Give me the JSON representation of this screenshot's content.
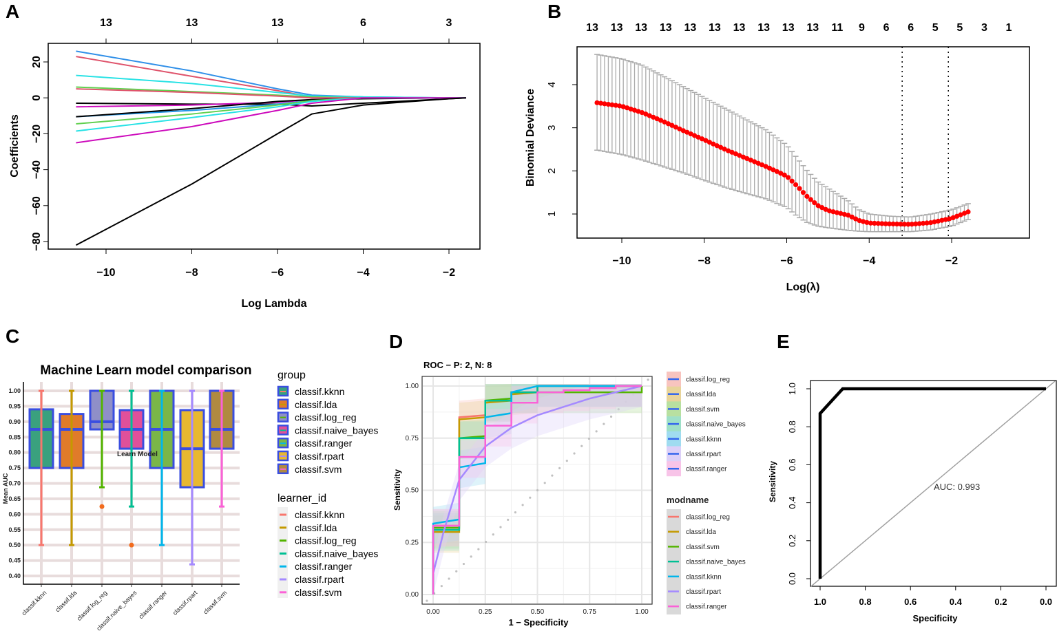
{
  "chart_data": [
    {
      "panel": "A",
      "type": "line",
      "xlabel": "Log Lambda",
      "ylabel": "Coefficients",
      "xlim": [
        -10.8,
        -1.5
      ],
      "ylim": [
        -85,
        30
      ],
      "x_ticks": [
        -10,
        -8,
        -6,
        -4,
        -2
      ],
      "x_tick_labels": [
        "−10",
        "−8",
        "−6",
        "−4",
        "−2"
      ],
      "y_ticks": [
        20,
        0,
        -20,
        -40,
        -60,
        -80
      ],
      "y_tick_labels": [
        "20",
        "0",
        "−20",
        "−40",
        "−60",
        "−80"
      ],
      "top_ticks": [
        -10,
        -8,
        -6,
        -4,
        -2
      ],
      "top_labels": [
        "13",
        "13",
        "13",
        "6",
        "3"
      ],
      "x": [
        -10.7,
        -8,
        -6,
        -5.2,
        -4,
        -2,
        -1.6
      ],
      "series": [
        {
          "color": "#2f8fe8",
          "values": [
            26,
            15,
            5,
            1.5,
            0.5,
            0,
            0
          ]
        },
        {
          "color": "#df536b",
          "values": [
            23,
            12,
            4,
            0.5,
            0,
            0,
            0
          ]
        },
        {
          "color": "#28e2e5",
          "values": [
            12.5,
            8,
            3,
            1,
            0.5,
            0,
            0
          ]
        },
        {
          "color": "#61d04f",
          "values": [
            6,
            3.5,
            1.5,
            0.5,
            0,
            0,
            0
          ]
        },
        {
          "color": "#df536b",
          "values": [
            5,
            3,
            1,
            0,
            0,
            0,
            0
          ]
        },
        {
          "color": "#000000",
          "values": [
            -3,
            -3.5,
            -3.5,
            -4.5,
            -3,
            -0.5,
            0
          ]
        },
        {
          "color": "#cd0bbc",
          "values": [
            -5,
            -4,
            -2.5,
            -1,
            0,
            0,
            0
          ]
        },
        {
          "color": "#2297e6",
          "values": [
            -10.5,
            -7,
            -3.5,
            -1.5,
            0,
            0,
            0
          ]
        },
        {
          "color": "#000000",
          "values": [
            -10.5,
            -6,
            -2,
            -1,
            -0.5,
            0,
            0
          ]
        },
        {
          "color": "#61d04f",
          "values": [
            -14.5,
            -9,
            -4,
            -1.5,
            0,
            0,
            0
          ]
        },
        {
          "color": "#28e2e5",
          "values": [
            -18.5,
            -11,
            -5,
            -2,
            0,
            0,
            0
          ]
        },
        {
          "color": "#cd0bbc",
          "values": [
            -25,
            -16,
            -7,
            -3,
            0,
            0,
            0
          ]
        },
        {
          "color": "#000000",
          "values": [
            -82,
            -48,
            -20,
            -9,
            -4,
            -0.5,
            0
          ]
        }
      ]
    },
    {
      "panel": "B",
      "type": "scatter",
      "xlabel": "Log(λ)",
      "ylabel": "Binomial Deviance",
      "xlim": [
        -10.75,
        -1.45
      ],
      "ylim": [
        0.45,
        4.9
      ],
      "x_ticks": [
        -10,
        -8,
        -6,
        -4,
        -2
      ],
      "x_tick_labels": [
        "−10",
        "−8",
        "−6",
        "−4",
        "−2"
      ],
      "y_ticks": [
        1,
        2,
        3,
        4
      ],
      "y_tick_labels": [
        "1",
        "2",
        "3",
        "4"
      ],
      "top_labels": [
        "13",
        "13",
        "13",
        "13",
        "13",
        "13",
        "13",
        "13",
        "13",
        "13",
        "11",
        "9",
        "6",
        "6",
        "5",
        "5",
        "3",
        "1"
      ],
      "x": [
        -10.6,
        -10,
        -9.5,
        -9,
        -8.5,
        -8,
        -7.5,
        -7,
        -6.5,
        -6,
        -5.75,
        -5.5,
        -5.25,
        -5,
        -4.5,
        -4.25,
        -4,
        -3.5,
        -3,
        -2.5,
        -2,
        -1.6
      ],
      "mean": [
        3.58,
        3.5,
        3.35,
        3.15,
        2.93,
        2.72,
        2.5,
        2.3,
        2.1,
        1.88,
        1.65,
        1.4,
        1.2,
        1.08,
        0.97,
        0.85,
        0.79,
        0.77,
        0.76,
        0.8,
        0.9,
        1.05
      ],
      "upper": [
        4.7,
        4.6,
        4.45,
        4.2,
        3.95,
        3.7,
        3.45,
        3.2,
        2.95,
        2.6,
        2.3,
        2.0,
        1.75,
        1.6,
        1.3,
        1.1,
        1.0,
        0.95,
        0.93,
        1.0,
        1.1,
        1.24
      ],
      "lower": [
        2.48,
        2.38,
        2.25,
        2.1,
        1.95,
        1.78,
        1.62,
        1.48,
        1.35,
        1.15,
        0.95,
        0.8,
        0.72,
        0.68,
        0.62,
        0.6,
        0.59,
        0.59,
        0.59,
        0.63,
        0.72,
        0.87
      ],
      "vlines": [
        -3.2,
        -2.08
      ],
      "point_color": "#ff0000",
      "errorbar_color": "#aaaaaa"
    },
    {
      "panel": "C",
      "type": "box",
      "title": "Machine Learn model comparison",
      "ylabel": "Mean AUC",
      "annotation": "Learn Model",
      "ylim": [
        0.38,
        1.02
      ],
      "y_ticks": [
        1.0,
        0.95,
        0.9,
        0.85,
        0.8,
        0.75,
        0.7,
        0.65,
        0.6,
        0.55,
        0.5,
        0.45,
        0.4
      ],
      "y_tick_labels": [
        "1.00",
        "0.95",
        "0.90",
        "0.85",
        "0.80",
        "0.75",
        "0.70",
        "0.65",
        "0.60",
        "0.55",
        "0.50",
        "0.45",
        "0.40"
      ],
      "categories": [
        "classif.kknn",
        "classif.lda",
        "classif.log_reg",
        "classif.naive_bayes",
        "classif.ranger",
        "classif.rpart",
        "classif.svm"
      ],
      "boxes": [
        {
          "q1": 0.75,
          "median": 0.875,
          "q3": 0.94,
          "min": 0.5,
          "max": 1.0,
          "fill": "#3aa17e",
          "line": "#f8766d",
          "outliers": []
        },
        {
          "q1": 0.75,
          "median": 0.875,
          "q3": 0.925,
          "min": 0.5,
          "max": 1.0,
          "fill": "#e07b2a",
          "line": "#c49a00",
          "outliers": []
        },
        {
          "q1": 0.875,
          "median": 0.9,
          "q3": 1.0,
          "min": 0.6875,
          "max": 1.0,
          "fill": "#8f8fc8",
          "line": "#53b400",
          "outliers": [
            0.625
          ]
        },
        {
          "q1": 0.8125,
          "median": 0.875,
          "q3": 0.9375,
          "min": 0.625,
          "max": 1.0,
          "fill": "#e0509a",
          "line": "#00c094",
          "outliers": [
            0.5
          ]
        },
        {
          "q1": 0.75,
          "median": 0.875,
          "q3": 1.0,
          "min": 0.5,
          "max": 1.0,
          "fill": "#7ab648",
          "line": "#00b6eb",
          "outliers": []
        },
        {
          "q1": 0.6875,
          "median": 0.8125,
          "q3": 0.9375,
          "min": 0.4375,
          "max": 1.0,
          "fill": "#e8b830",
          "line": "#a58aff",
          "outliers": []
        },
        {
          "q1": 0.8125,
          "median": 0.875,
          "q3": 1.0,
          "min": 0.625,
          "max": 1.0,
          "fill": "#b08a40",
          "line": "#fb61d7",
          "outliers": []
        }
      ],
      "box_border": "#3a4ee0",
      "outlier_color": "#f26b1d",
      "legend_group_title": "group",
      "legend_learner_title": "learner_id"
    },
    {
      "panel": "D",
      "type": "line",
      "title": "ROC − P: 2, N: 8",
      "xlabel": "1 − Specificity",
      "ylabel": "Sensitivity",
      "xlim": [
        -0.05,
        1.05
      ],
      "ylim": [
        -0.05,
        1.05
      ],
      "x_ticks": [
        0,
        0.25,
        0.5,
        0.75,
        1
      ],
      "x_tick_labels": [
        "0.00",
        "0.25",
        "0.50",
        "0.75",
        "1.00"
      ],
      "y_ticks": [
        0,
        0.25,
        0.5,
        0.75,
        1
      ],
      "y_tick_labels": [
        "0.00",
        "0.25",
        "0.50",
        "0.75",
        "1.00"
      ],
      "legend_fill_labels": [
        "classif.log_reg",
        "classif.lda",
        "classif.svm",
        "classif.naive_bayes",
        "classif.kknn",
        "classif.rpart",
        "classif.ranger"
      ],
      "legend_fill_colors": [
        "#f8c4bf",
        "#e8d49a",
        "#b8e0a0",
        "#9ee0c8",
        "#a0dcf0",
        "#dcd0f8",
        "#f8c4e8"
      ],
      "legend_modname_title": "modname",
      "series": [
        {
          "name": "classif.log_reg",
          "color": "#f8766d",
          "points": [
            [
              0,
              0
            ],
            [
              0,
              0.33
            ],
            [
              0.125,
              0.33
            ],
            [
              0.125,
              0.85
            ],
            [
              0.25,
              0.86
            ],
            [
              0.25,
              0.93
            ],
            [
              0.375,
              0.93
            ],
            [
              0.375,
              0.97
            ],
            [
              0.5,
              0.97
            ],
            [
              0.5,
              1
            ],
            [
              1,
              1
            ]
          ]
        },
        {
          "name": "classif.lda",
          "color": "#c49a00",
          "points": [
            [
              0,
              0
            ],
            [
              0,
              0.3
            ],
            [
              0.125,
              0.3
            ],
            [
              0.125,
              0.84
            ],
            [
              0.25,
              0.85
            ],
            [
              0.25,
              0.92
            ],
            [
              0.375,
              0.93
            ],
            [
              0.375,
              0.96
            ],
            [
              0.5,
              0.97
            ],
            [
              0.5,
              1
            ],
            [
              1,
              1
            ]
          ]
        },
        {
          "name": "classif.svm",
          "color": "#53b400",
          "points": [
            [
              0,
              0
            ],
            [
              0,
              0.32
            ],
            [
              0.125,
              0.32
            ],
            [
              0.125,
              0.75
            ],
            [
              0.25,
              0.76
            ],
            [
              0.25,
              0.93
            ],
            [
              0.375,
              0.94
            ],
            [
              0.375,
              0.97
            ],
            [
              0.5,
              0.97
            ],
            [
              1,
              0.97
            ],
            [
              1,
              1
            ]
          ]
        },
        {
          "name": "classif.naive_bayes",
          "color": "#00c094",
          "points": [
            [
              0,
              0
            ],
            [
              0,
              0.31
            ],
            [
              0.125,
              0.31
            ],
            [
              0.125,
              0.75
            ],
            [
              0.25,
              0.75
            ],
            [
              0.25,
              0.93
            ],
            [
              0.375,
              0.93
            ],
            [
              0.375,
              0.97
            ],
            [
              0.5,
              0.97
            ],
            [
              0.5,
              1
            ],
            [
              1,
              1
            ]
          ]
        },
        {
          "name": "classif.kknn",
          "color": "#00b6eb",
          "points": [
            [
              0,
              0
            ],
            [
              0,
              0.34
            ],
            [
              0.125,
              0.36
            ],
            [
              0.125,
              0.61
            ],
            [
              0.25,
              0.63
            ],
            [
              0.25,
              0.85
            ],
            [
              0.375,
              0.87
            ],
            [
              0.375,
              0.97
            ],
            [
              0.5,
              1
            ],
            [
              1,
              1
            ]
          ]
        },
        {
          "name": "classif.rpart",
          "color": "#a58aff",
          "points": [
            [
              0,
              0.1
            ],
            [
              0.05,
              0.3
            ],
            [
              0.125,
              0.55
            ],
            [
              0.25,
              0.71
            ],
            [
              0.375,
              0.8
            ],
            [
              0.5,
              0.86
            ],
            [
              0.75,
              0.94
            ],
            [
              1,
              1
            ]
          ]
        },
        {
          "name": "classif.ranger",
          "color": "#fb61d7",
          "points": [
            [
              0,
              0
            ],
            [
              0,
              0.33
            ],
            [
              0.125,
              0.33
            ],
            [
              0.125,
              0.66
            ],
            [
              0.25,
              0.66
            ],
            [
              0.25,
              0.81
            ],
            [
              0.375,
              0.81
            ],
            [
              0.375,
              0.92
            ],
            [
              0.5,
              0.92
            ],
            [
              0.5,
              0.97
            ],
            [
              0.625,
              0.97
            ],
            [
              0.625,
              0.98
            ],
            [
              0.75,
              0.98
            ],
            [
              0.75,
              0.99
            ],
            [
              0.875,
              0.99
            ],
            [
              0.875,
              1
            ],
            [
              1,
              1
            ]
          ]
        }
      ],
      "legend_line_color": "#3366ee"
    },
    {
      "panel": "E",
      "type": "line",
      "xlabel": "Specificity",
      "ylabel": "Sensitivity",
      "xlim": [
        1.04,
        -0.04
      ],
      "ylim": [
        -0.04,
        1.04
      ],
      "x_ticks": [
        1.0,
        0.8,
        0.6,
        0.4,
        0.2,
        0.0
      ],
      "x_tick_labels": [
        "1.0",
        "0.8",
        "0.6",
        "0.4",
        "0.2",
        "0.0"
      ],
      "y_ticks": [
        0.0,
        0.2,
        0.4,
        0.6,
        0.8,
        1.0
      ],
      "y_tick_labels": [
        "0.0",
        "0.2",
        "0.4",
        "0.6",
        "0.8",
        "1.0"
      ],
      "curve": [
        [
          1.0,
          0.0
        ],
        [
          1.0,
          0.87
        ],
        [
          0.9,
          1.0
        ],
        [
          0.0,
          1.0
        ]
      ],
      "annotation": "AUC: 0.993"
    }
  ],
  "panels": {
    "a": "A",
    "b": "B",
    "c": "C",
    "d": "D",
    "e": "E"
  }
}
